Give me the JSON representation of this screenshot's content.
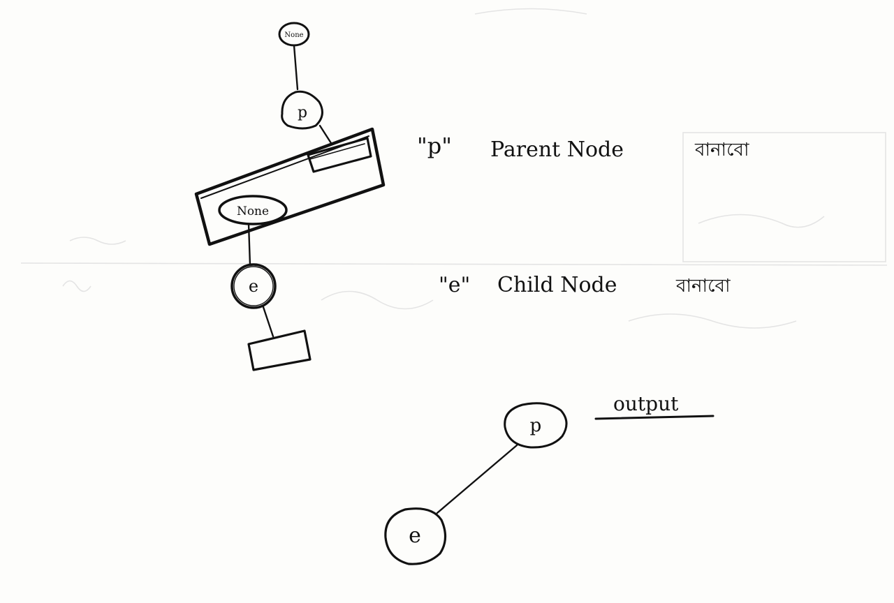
{
  "diagram": {
    "top_node": {
      "none_label": "None",
      "label": "p"
    },
    "child_block": {
      "none_label": "None",
      "label": "e"
    },
    "annotations": {
      "parent": {
        "quoted": "\"p\"",
        "text": "Parent Node",
        "bengali": "বানাবো"
      },
      "child": {
        "quoted": "\"e\"",
        "text": "Child Node",
        "bengali": "বানাবো"
      }
    },
    "output": {
      "heading": "output",
      "parent_label": "p",
      "child_label": "e"
    }
  }
}
